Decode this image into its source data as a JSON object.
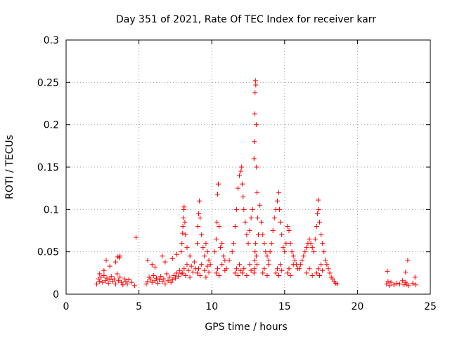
{
  "chart_data": {
    "type": "scatter",
    "title": "Day 351 of 2021, Rate Of TEC Index for receiver karr",
    "xlabel": "GPS time / hours",
    "ylabel": "ROTI / TECUs",
    "xlim": [
      0,
      25
    ],
    "ylim": [
      0,
      0.3
    ],
    "x_ticks": [
      0,
      5,
      10,
      15,
      20,
      25
    ],
    "x_tick_labels": [
      "0",
      "5",
      "10",
      "15",
      "20",
      "25"
    ],
    "y_ticks": [
      0,
      0.05,
      0.1,
      0.15,
      0.2,
      0.25,
      0.3
    ],
    "y_tick_labels": [
      "0",
      "0.05",
      "0.1",
      "0.15",
      "0.2",
      "0.25",
      "0.3"
    ],
    "grid": true,
    "marker": "plus",
    "color": "#ff0000",
    "series": [
      {
        "x": [
          2.1,
          2.2,
          2.3,
          2.4,
          2.5,
          2.6,
          2.7,
          2.8,
          2.9,
          3.0,
          3.1,
          3.2,
          3.3,
          3.4,
          3.5,
          3.6,
          3.7,
          3.8,
          3.9,
          4.0,
          4.1,
          4.2,
          4.3,
          4.5,
          4.7,
          2.3,
          2.6,
          2.75,
          3.0,
          3.4,
          3.55,
          3.65,
          3.7,
          4.8,
          5.5,
          5.6,
          5.7,
          5.8,
          5.9,
          6.0,
          6.1,
          6.2,
          6.3,
          6.4,
          6.5,
          6.6,
          6.7,
          6.8,
          6.9,
          7.0,
          7.1,
          7.2,
          7.3,
          7.4,
          7.5,
          7.6,
          7.7,
          7.8,
          7.9,
          5.6,
          5.9,
          6.1,
          6.6,
          6.8,
          7.3,
          7.6,
          7.9,
          7.95,
          8.0,
          8.02,
          8.05,
          8.08,
          8.1,
          8.15,
          8.2,
          8.3,
          8.5,
          8.8,
          8.0,
          8.1,
          8.2,
          8.3,
          8.4,
          8.5,
          8.6,
          8.7,
          8.9,
          9.0,
          9.05,
          9.1,
          9.15,
          9.2,
          9.3,
          9.4,
          9.5,
          9.6,
          9.7,
          9.8,
          9.9,
          9.0,
          9.1,
          9.2,
          9.3,
          9.5,
          9.6,
          9.7,
          9.8,
          10.2,
          10.3,
          10.35,
          10.4,
          10.45,
          10.5,
          10.6,
          10.7,
          10.8,
          10.9,
          10.3,
          10.4,
          10.5,
          10.7,
          10.9,
          11.0,
          11.2,
          11.4,
          11.5,
          11.6,
          11.7,
          11.8,
          11.9,
          11.6,
          11.7,
          11.8,
          11.9,
          11.95,
          12.0,
          12.05,
          12.1,
          12.15,
          12.2,
          12.3,
          12.4,
          12.5,
          12.6,
          12.7,
          12.8,
          12.1,
          12.2,
          12.4,
          12.6,
          12.7,
          12.9,
          12.92,
          12.95,
          12.97,
          13.0,
          13.02,
          13.05,
          13.07,
          13.1,
          13.15,
          13.2,
          12.9,
          12.93,
          12.95,
          12.97,
          13.0,
          13.05,
          13.1,
          13.3,
          13.4,
          13.5,
          13.6,
          13.7,
          13.8,
          13.9,
          13.5,
          13.6,
          13.8,
          13.9,
          14.0,
          14.1,
          14.2,
          14.3,
          14.4,
          14.5,
          14.6,
          14.65,
          14.7,
          14.8,
          14.9,
          14.4,
          14.5,
          14.6,
          14.7,
          14.8,
          15.0,
          15.1,
          15.2,
          15.3,
          15.4,
          15.5,
          15.6,
          15.7,
          15.8,
          15.9,
          15.2,
          15.3,
          15.4,
          15.6,
          16.0,
          16.1,
          16.2,
          16.3,
          16.4,
          16.5,
          16.6,
          16.7,
          16.8,
          16.9,
          16.5,
          16.7,
          16.9,
          17.0,
          17.1,
          17.2,
          17.25,
          17.3,
          17.35,
          17.4,
          17.5,
          17.6,
          17.7,
          17.8,
          17.9,
          17.2,
          17.3,
          17.4,
          17.5,
          17.6,
          18.0,
          18.1,
          18.2,
          18.3,
          18.4,
          18.5,
          18.6,
          22.0,
          22.1,
          22.2,
          22.3,
          22.5,
          22.7,
          22.9,
          23.1,
          23.2,
          23.3,
          23.4,
          23.5,
          23.8,
          24.0,
          22.05,
          23.3,
          23.45,
          23.95
        ],
        "y": [
          0.012,
          0.018,
          0.015,
          0.02,
          0.014,
          0.022,
          0.016,
          0.019,
          0.013,
          0.017,
          0.021,
          0.015,
          0.018,
          0.012,
          0.024,
          0.016,
          0.02,
          0.014,
          0.011,
          0.018,
          0.015,
          0.012,
          0.017,
          0.014,
          0.01,
          0.024,
          0.028,
          0.04,
          0.033,
          0.038,
          0.044,
          0.043,
          0.045,
          0.067,
          0.012,
          0.015,
          0.02,
          0.018,
          0.014,
          0.022,
          0.016,
          0.019,
          0.013,
          0.017,
          0.021,
          0.015,
          0.018,
          0.012,
          0.024,
          0.016,
          0.02,
          0.014,
          0.017,
          0.022,
          0.019,
          0.025,
          0.021,
          0.028,
          0.024,
          0.04,
          0.035,
          0.032,
          0.045,
          0.038,
          0.042,
          0.047,
          0.05,
          0.06,
          0.072,
          0.08,
          0.09,
          0.1,
          0.103,
          0.085,
          0.07,
          0.055,
          0.045,
          0.038,
          0.025,
          0.03,
          0.022,
          0.035,
          0.028,
          0.02,
          0.033,
          0.026,
          0.03,
          0.06,
          0.08,
          0.095,
          0.11,
          0.09,
          0.07,
          0.055,
          0.045,
          0.06,
          0.05,
          0.04,
          0.035,
          0.025,
          0.03,
          0.022,
          0.035,
          0.028,
          0.02,
          0.033,
          0.026,
          0.05,
          0.065,
          0.085,
          0.118,
          0.13,
          0.08,
          0.055,
          0.06,
          0.045,
          0.04,
          0.025,
          0.03,
          0.022,
          0.035,
          0.028,
          0.03,
          0.04,
          0.05,
          0.06,
          0.08,
          0.1,
          0.125,
          0.14,
          0.025,
          0.03,
          0.022,
          0.035,
          0.028,
          0.145,
          0.15,
          0.13,
          0.115,
          0.1,
          0.085,
          0.07,
          0.06,
          0.075,
          0.09,
          0.1,
          0.025,
          0.03,
          0.022,
          0.035,
          0.028,
          0.16,
          0.18,
          0.213,
          0.238,
          0.252,
          0.247,
          0.2,
          0.15,
          0.12,
          0.09,
          0.07,
          0.025,
          0.03,
          0.04,
          0.05,
          0.06,
          0.045,
          0.035,
          0.105,
          0.085,
          0.07,
          0.06,
          0.05,
          0.045,
          0.04,
          0.025,
          0.03,
          0.022,
          0.035,
          0.05,
          0.06,
          0.075,
          0.09,
          0.1,
          0.11,
          0.12,
          0.1,
          0.085,
          0.07,
          0.055,
          0.025,
          0.03,
          0.022,
          0.035,
          0.028,
          0.05,
          0.06,
          0.08,
          0.075,
          0.06,
          0.05,
          0.045,
          0.04,
          0.035,
          0.03,
          0.025,
          0.03,
          0.022,
          0.035,
          0.03,
          0.035,
          0.04,
          0.045,
          0.05,
          0.055,
          0.06,
          0.065,
          0.06,
          0.055,
          0.025,
          0.03,
          0.022,
          0.05,
          0.065,
          0.08,
          0.095,
          0.111,
          0.1,
          0.085,
          0.07,
          0.06,
          0.05,
          0.04,
          0.035,
          0.025,
          0.03,
          0.022,
          0.035,
          0.028,
          0.03,
          0.025,
          0.02,
          0.018,
          0.015,
          0.013,
          0.012,
          0.012,
          0.015,
          0.01,
          0.014,
          0.011,
          0.013,
          0.012,
          0.016,
          0.011,
          0.014,
          0.012,
          0.01,
          0.013,
          0.011,
          0.027,
          0.026,
          0.04,
          0.02
        ]
      }
    ]
  }
}
